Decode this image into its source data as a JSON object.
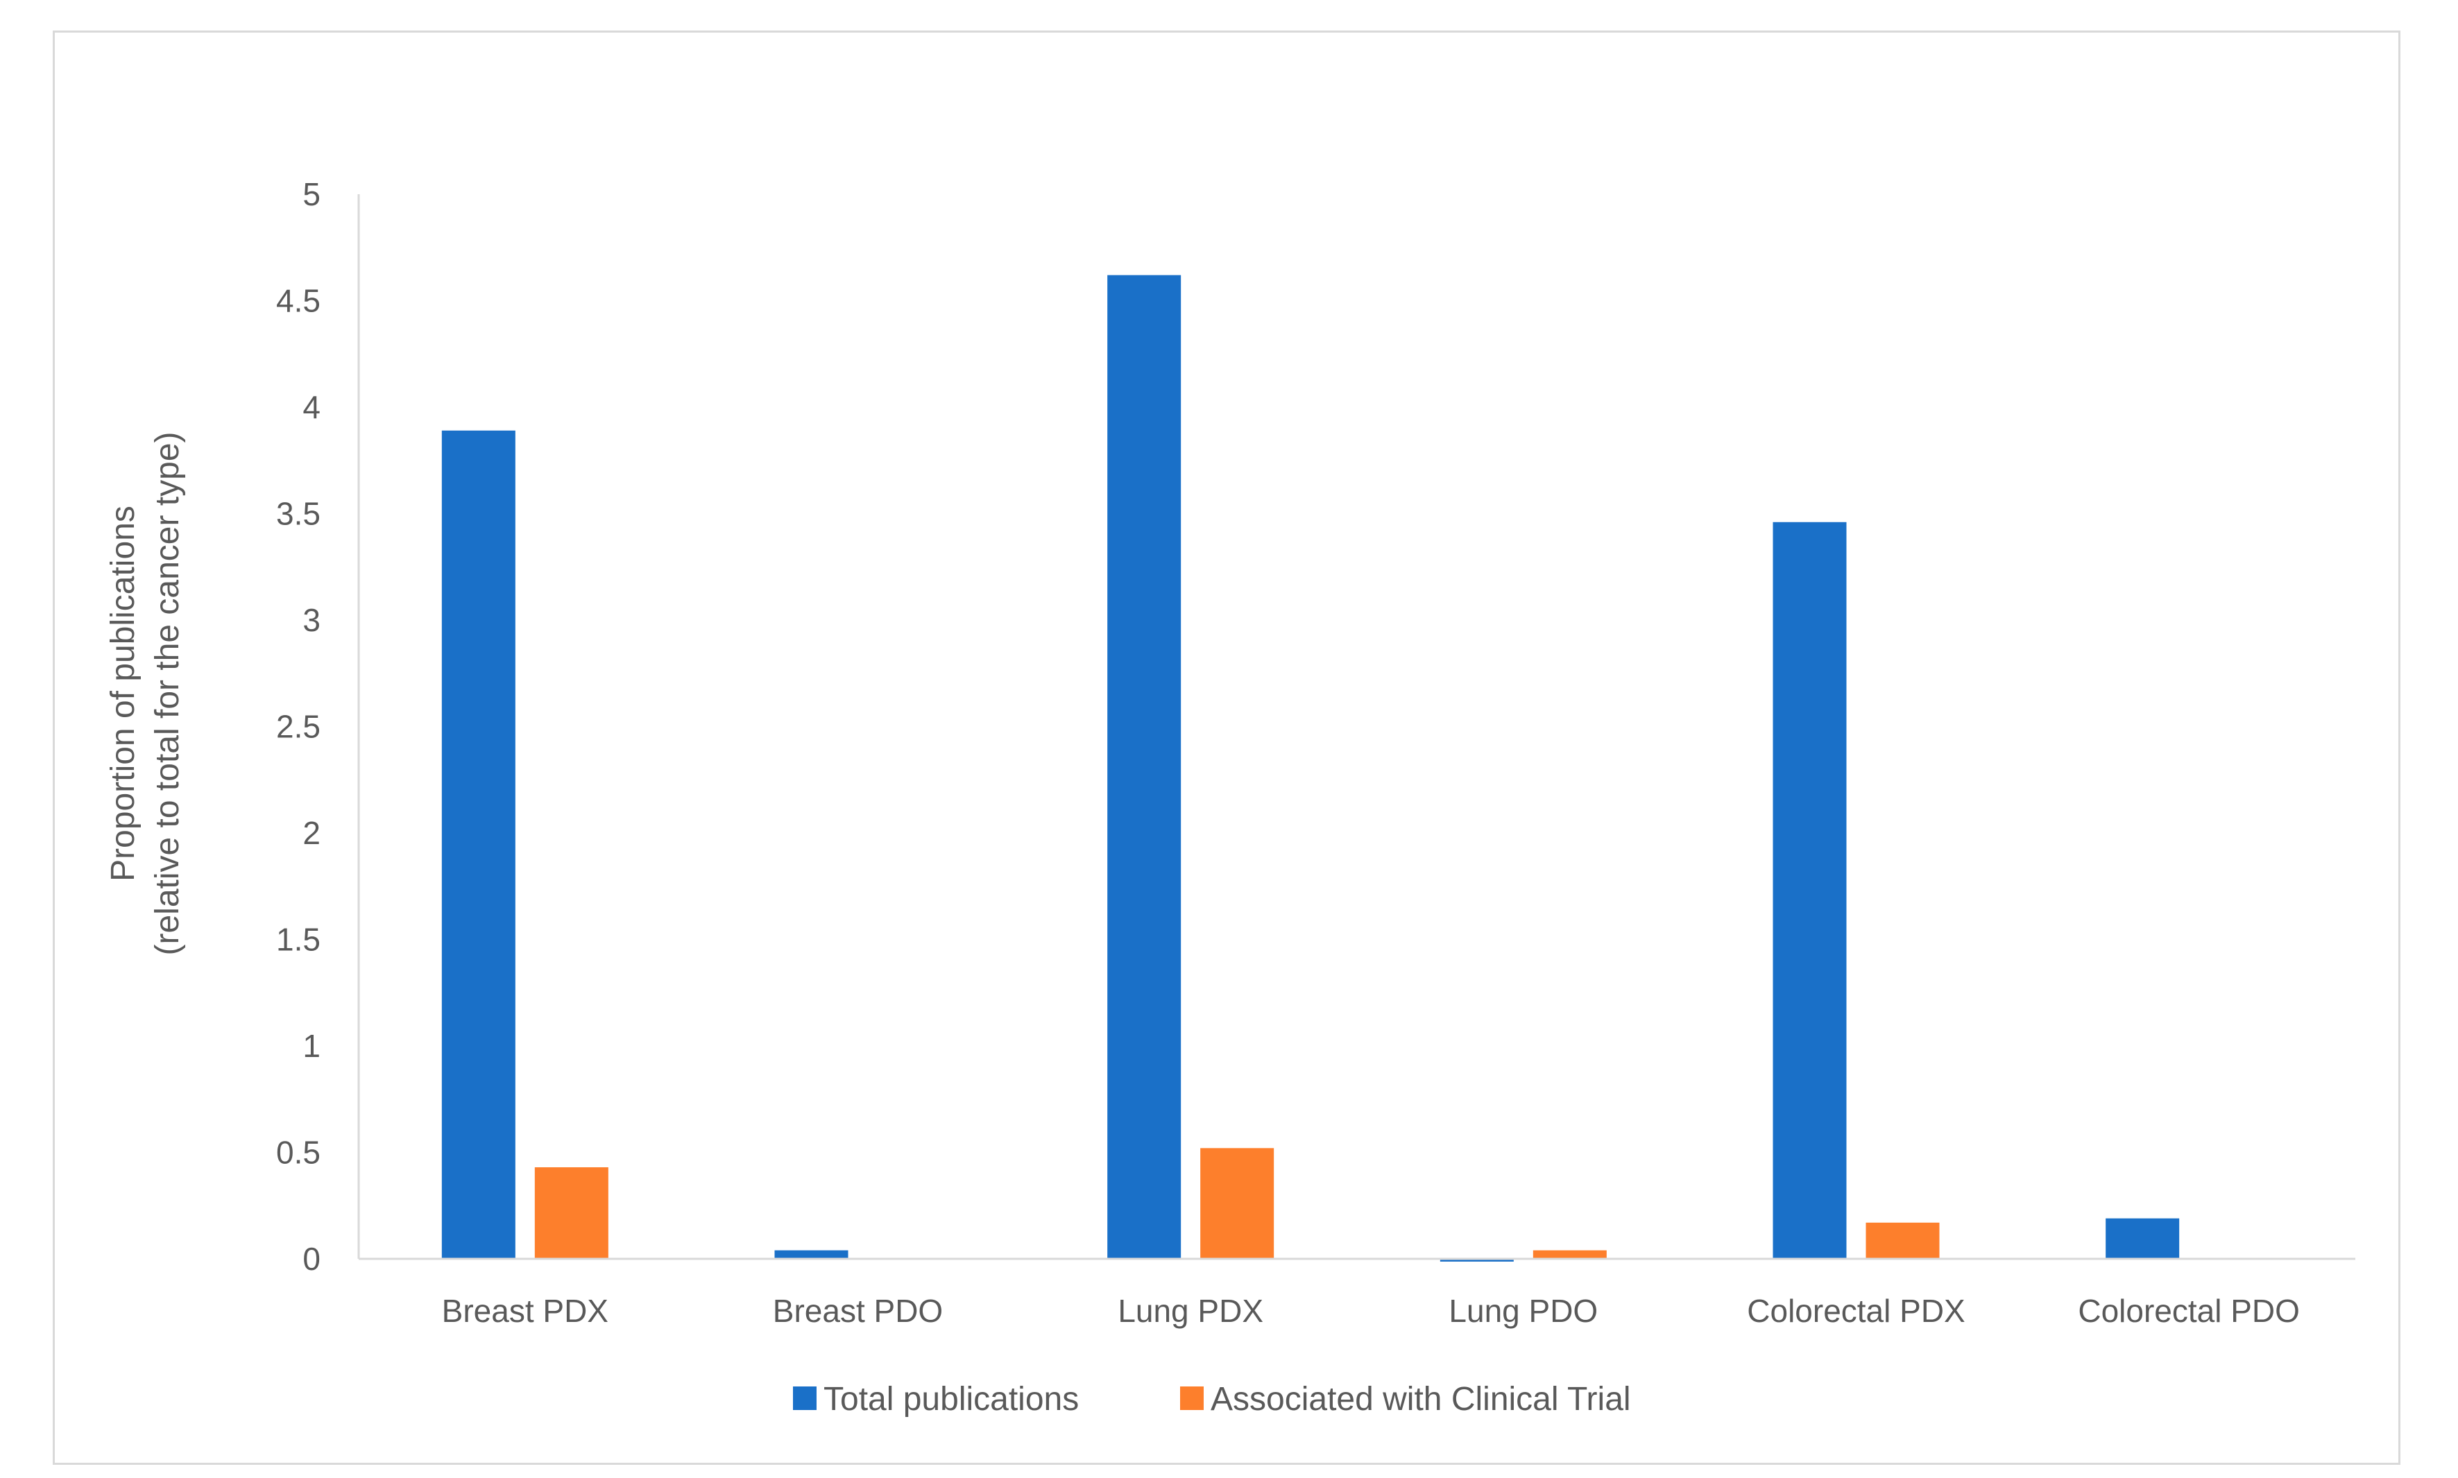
{
  "chart_data": {
    "type": "bar",
    "title": "",
    "xlabel": "",
    "ylabel": [
      "Proportion of publications",
      "(relative to total for the cancer type)"
    ],
    "ylim": [
      0,
      5
    ],
    "yticks": [
      "0",
      "0.5",
      "1",
      "1.5",
      "2",
      "2.5",
      "3",
      "3.5",
      "4",
      "4.5",
      "5"
    ],
    "categories": [
      "Breast PDX",
      "Breast PDO",
      "Lung PDX",
      "Lung PDO",
      "Colorectal PDX",
      "Colorectal PDO"
    ],
    "series": [
      {
        "name": "Total publications",
        "color": "#1a70c8",
        "values": [
          3.89,
          0.04,
          4.62,
          -0.01,
          3.46,
          0.19
        ]
      },
      {
        "name": "Associated with Clinical Trial",
        "color": "#fd7f2c",
        "values": [
          0.43,
          0,
          0.52,
          0.04,
          0.17,
          0
        ]
      }
    ],
    "legend_position": "bottom",
    "grid": false
  }
}
